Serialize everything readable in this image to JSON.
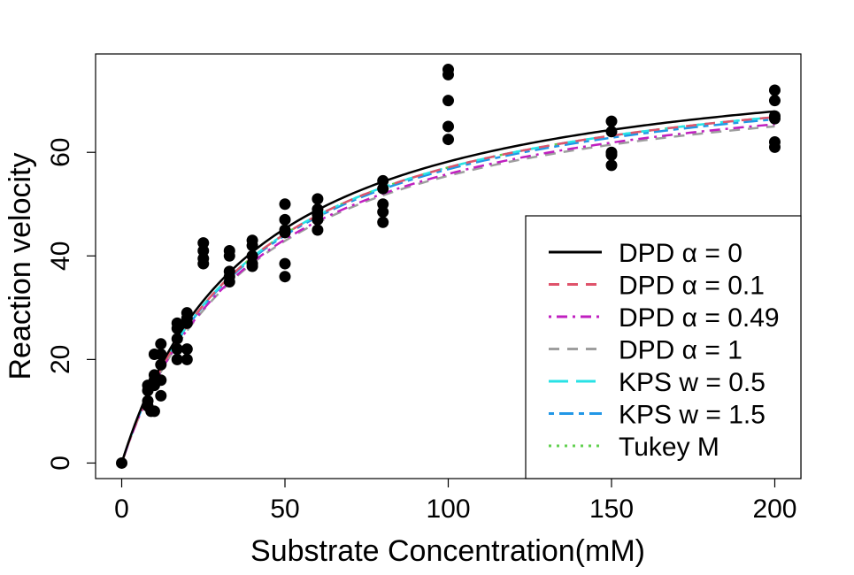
{
  "chart_data": {
    "type": "scatter",
    "title": "",
    "xlabel": "Substrate Concentration(mM)",
    "ylabel": "Reaction velocity",
    "xlim": [
      -8,
      208
    ],
    "ylim": [
      -3,
      79
    ],
    "xticks": [
      0,
      50,
      100,
      150,
      200
    ],
    "yticks": [
      0,
      20,
      40,
      60
    ],
    "grid": false,
    "legend_position": "bottom-right",
    "points": [
      [
        0,
        0
      ],
      [
        8,
        15
      ],
      [
        8,
        14
      ],
      [
        8,
        12
      ],
      [
        8,
        11
      ],
      [
        9,
        10
      ],
      [
        10,
        21
      ],
      [
        10,
        17
      ],
      [
        10,
        16
      ],
      [
        10,
        15
      ],
      [
        10,
        10
      ],
      [
        12,
        23
      ],
      [
        12,
        21
      ],
      [
        12,
        19
      ],
      [
        12,
        16
      ],
      [
        12,
        13
      ],
      [
        17,
        27
      ],
      [
        17,
        26
      ],
      [
        17,
        24
      ],
      [
        17,
        22
      ],
      [
        17,
        20
      ],
      [
        20,
        29
      ],
      [
        20,
        28
      ],
      [
        20,
        27
      ],
      [
        20,
        22
      ],
      [
        20,
        20
      ],
      [
        25,
        42.5
      ],
      [
        25,
        41
      ],
      [
        25,
        39.5
      ],
      [
        25,
        38.5
      ],
      [
        33,
        41
      ],
      [
        33,
        40
      ],
      [
        33,
        37
      ],
      [
        33,
        36
      ],
      [
        33,
        35
      ],
      [
        40,
        43
      ],
      [
        40,
        42
      ],
      [
        40,
        40
      ],
      [
        40,
        38.5
      ],
      [
        40,
        38
      ],
      [
        50,
        50
      ],
      [
        50,
        47
      ],
      [
        50,
        45
      ],
      [
        50,
        44.5
      ],
      [
        50,
        38.5
      ],
      [
        50,
        36
      ],
      [
        60,
        51
      ],
      [
        60,
        49
      ],
      [
        60,
        48
      ],
      [
        60,
        47
      ],
      [
        60,
        45
      ],
      [
        80,
        54.5
      ],
      [
        80,
        53
      ],
      [
        80,
        50
      ],
      [
        80,
        48.5
      ],
      [
        80,
        46.5
      ],
      [
        100,
        76
      ],
      [
        100,
        75
      ],
      [
        100,
        70
      ],
      [
        100,
        65
      ],
      [
        100,
        62.5
      ],
      [
        150,
        66
      ],
      [
        150,
        64
      ],
      [
        150,
        60
      ],
      [
        150,
        59.5
      ],
      [
        150,
        57.5
      ],
      [
        200,
        72
      ],
      [
        200,
        70
      ],
      [
        200,
        67
      ],
      [
        200,
        66.5
      ],
      [
        200,
        62
      ],
      [
        200,
        61
      ]
    ],
    "series": [
      {
        "name": "DPD α = 0",
        "label": "DPD α = 0",
        "type": "michaelis-menten",
        "vmax": 81.5,
        "km": 40.0,
        "color": "#000000",
        "dash": "solid"
      },
      {
        "name": "DPD α = 0.1",
        "label": "DPD α = 0.1",
        "type": "michaelis-menten",
        "vmax": 80.5,
        "km": 41.0,
        "color": "#DF536B",
        "dash": "dashed"
      },
      {
        "name": "DPD α = 0.49",
        "label": "DPD α = 0.49",
        "type": "michaelis-menten",
        "vmax": 79.0,
        "km": 41.5,
        "color": "#C020C0",
        "dash": "dotdash"
      },
      {
        "name": "DPD α = 1",
        "label": "DPD α = 1",
        "type": "michaelis-menten",
        "vmax": 78.5,
        "km": 41.5,
        "color": "#9E9E9E",
        "dash": "dashed"
      },
      {
        "name": "KPS w = 0.5",
        "label": "KPS w = 0.5",
        "type": "michaelis-menten",
        "vmax": 80.5,
        "km": 41.0,
        "color": "#28E2E5",
        "dash": "longdash"
      },
      {
        "name": "KPS w = 1.5",
        "label": "KPS w = 1.5",
        "type": "michaelis-menten",
        "vmax": 80.0,
        "km": 41.0,
        "color": "#2297E6",
        "dash": "twodash"
      },
      {
        "name": "Tukey M",
        "label": "Tukey M",
        "type": "michaelis-menten",
        "vmax": 80.5,
        "km": 41.0,
        "color": "#61D04F",
        "dash": "dotted"
      }
    ]
  }
}
